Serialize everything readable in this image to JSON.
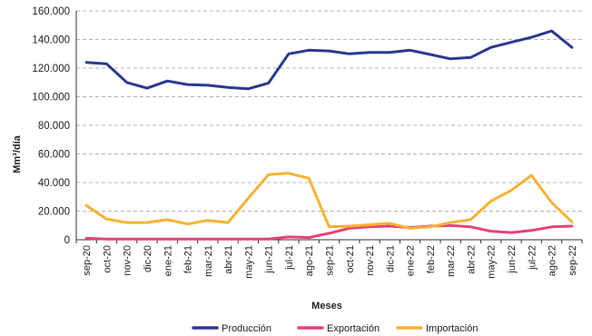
{
  "chart_data": {
    "type": "line",
    "title": "",
    "xlabel": "Meses",
    "ylabel": "Mm³/día",
    "ylim": [
      0,
      160000
    ],
    "yticks": [
      0,
      20000,
      40000,
      60000,
      80000,
      100000,
      120000,
      140000,
      160000
    ],
    "ytick_labels": [
      "0",
      "20.000",
      "40.000",
      "60.000",
      "80.000",
      "100.000",
      "120.000",
      "140.000",
      "160.000"
    ],
    "grid": "horizontal dashed",
    "legend_position": "bottom",
    "categories": [
      "sep-20",
      "oct-20",
      "nov-20",
      "dic-20",
      "ene-21",
      "feb-21",
      "mar-21",
      "abr-21",
      "may-21",
      "jun-21",
      "jul-21",
      "ago-21",
      "sep-21",
      "oct-21",
      "nov-21",
      "dic-21",
      "ene-22",
      "feb-22",
      "mar-22",
      "abr-22",
      "may-22",
      "jun-22",
      "jul-22",
      "ago-22",
      "sep-22"
    ],
    "series": [
      {
        "name": "Producción",
        "color": "#2b3990",
        "values": [
          124000,
          123000,
          110000,
          106000,
          111000,
          108500,
          108000,
          106500,
          105500,
          109500,
          130000,
          132500,
          132000,
          130000,
          131000,
          131000,
          132500,
          129500,
          126500,
          127500,
          134500,
          138000,
          141500,
          146000,
          134500
        ]
      },
      {
        "name": "Exportación",
        "color": "#e6427a",
        "values": [
          1000,
          500,
          500,
          500,
          500,
          500,
          500,
          500,
          500,
          500,
          2000,
          1500,
          4500,
          8000,
          9000,
          9500,
          8500,
          9500,
          10000,
          9000,
          6000,
          5000,
          6500,
          9000,
          9500
        ]
      },
      {
        "name": "Importación",
        "color": "#f7b233",
        "values": [
          24000,
          14500,
          12000,
          12000,
          14000,
          11000,
          13500,
          12000,
          29000,
          45500,
          46500,
          43000,
          9000,
          9500,
          10500,
          11500,
          8000,
          9000,
          12000,
          14000,
          27000,
          34500,
          45000,
          26000,
          12500
        ]
      }
    ]
  }
}
